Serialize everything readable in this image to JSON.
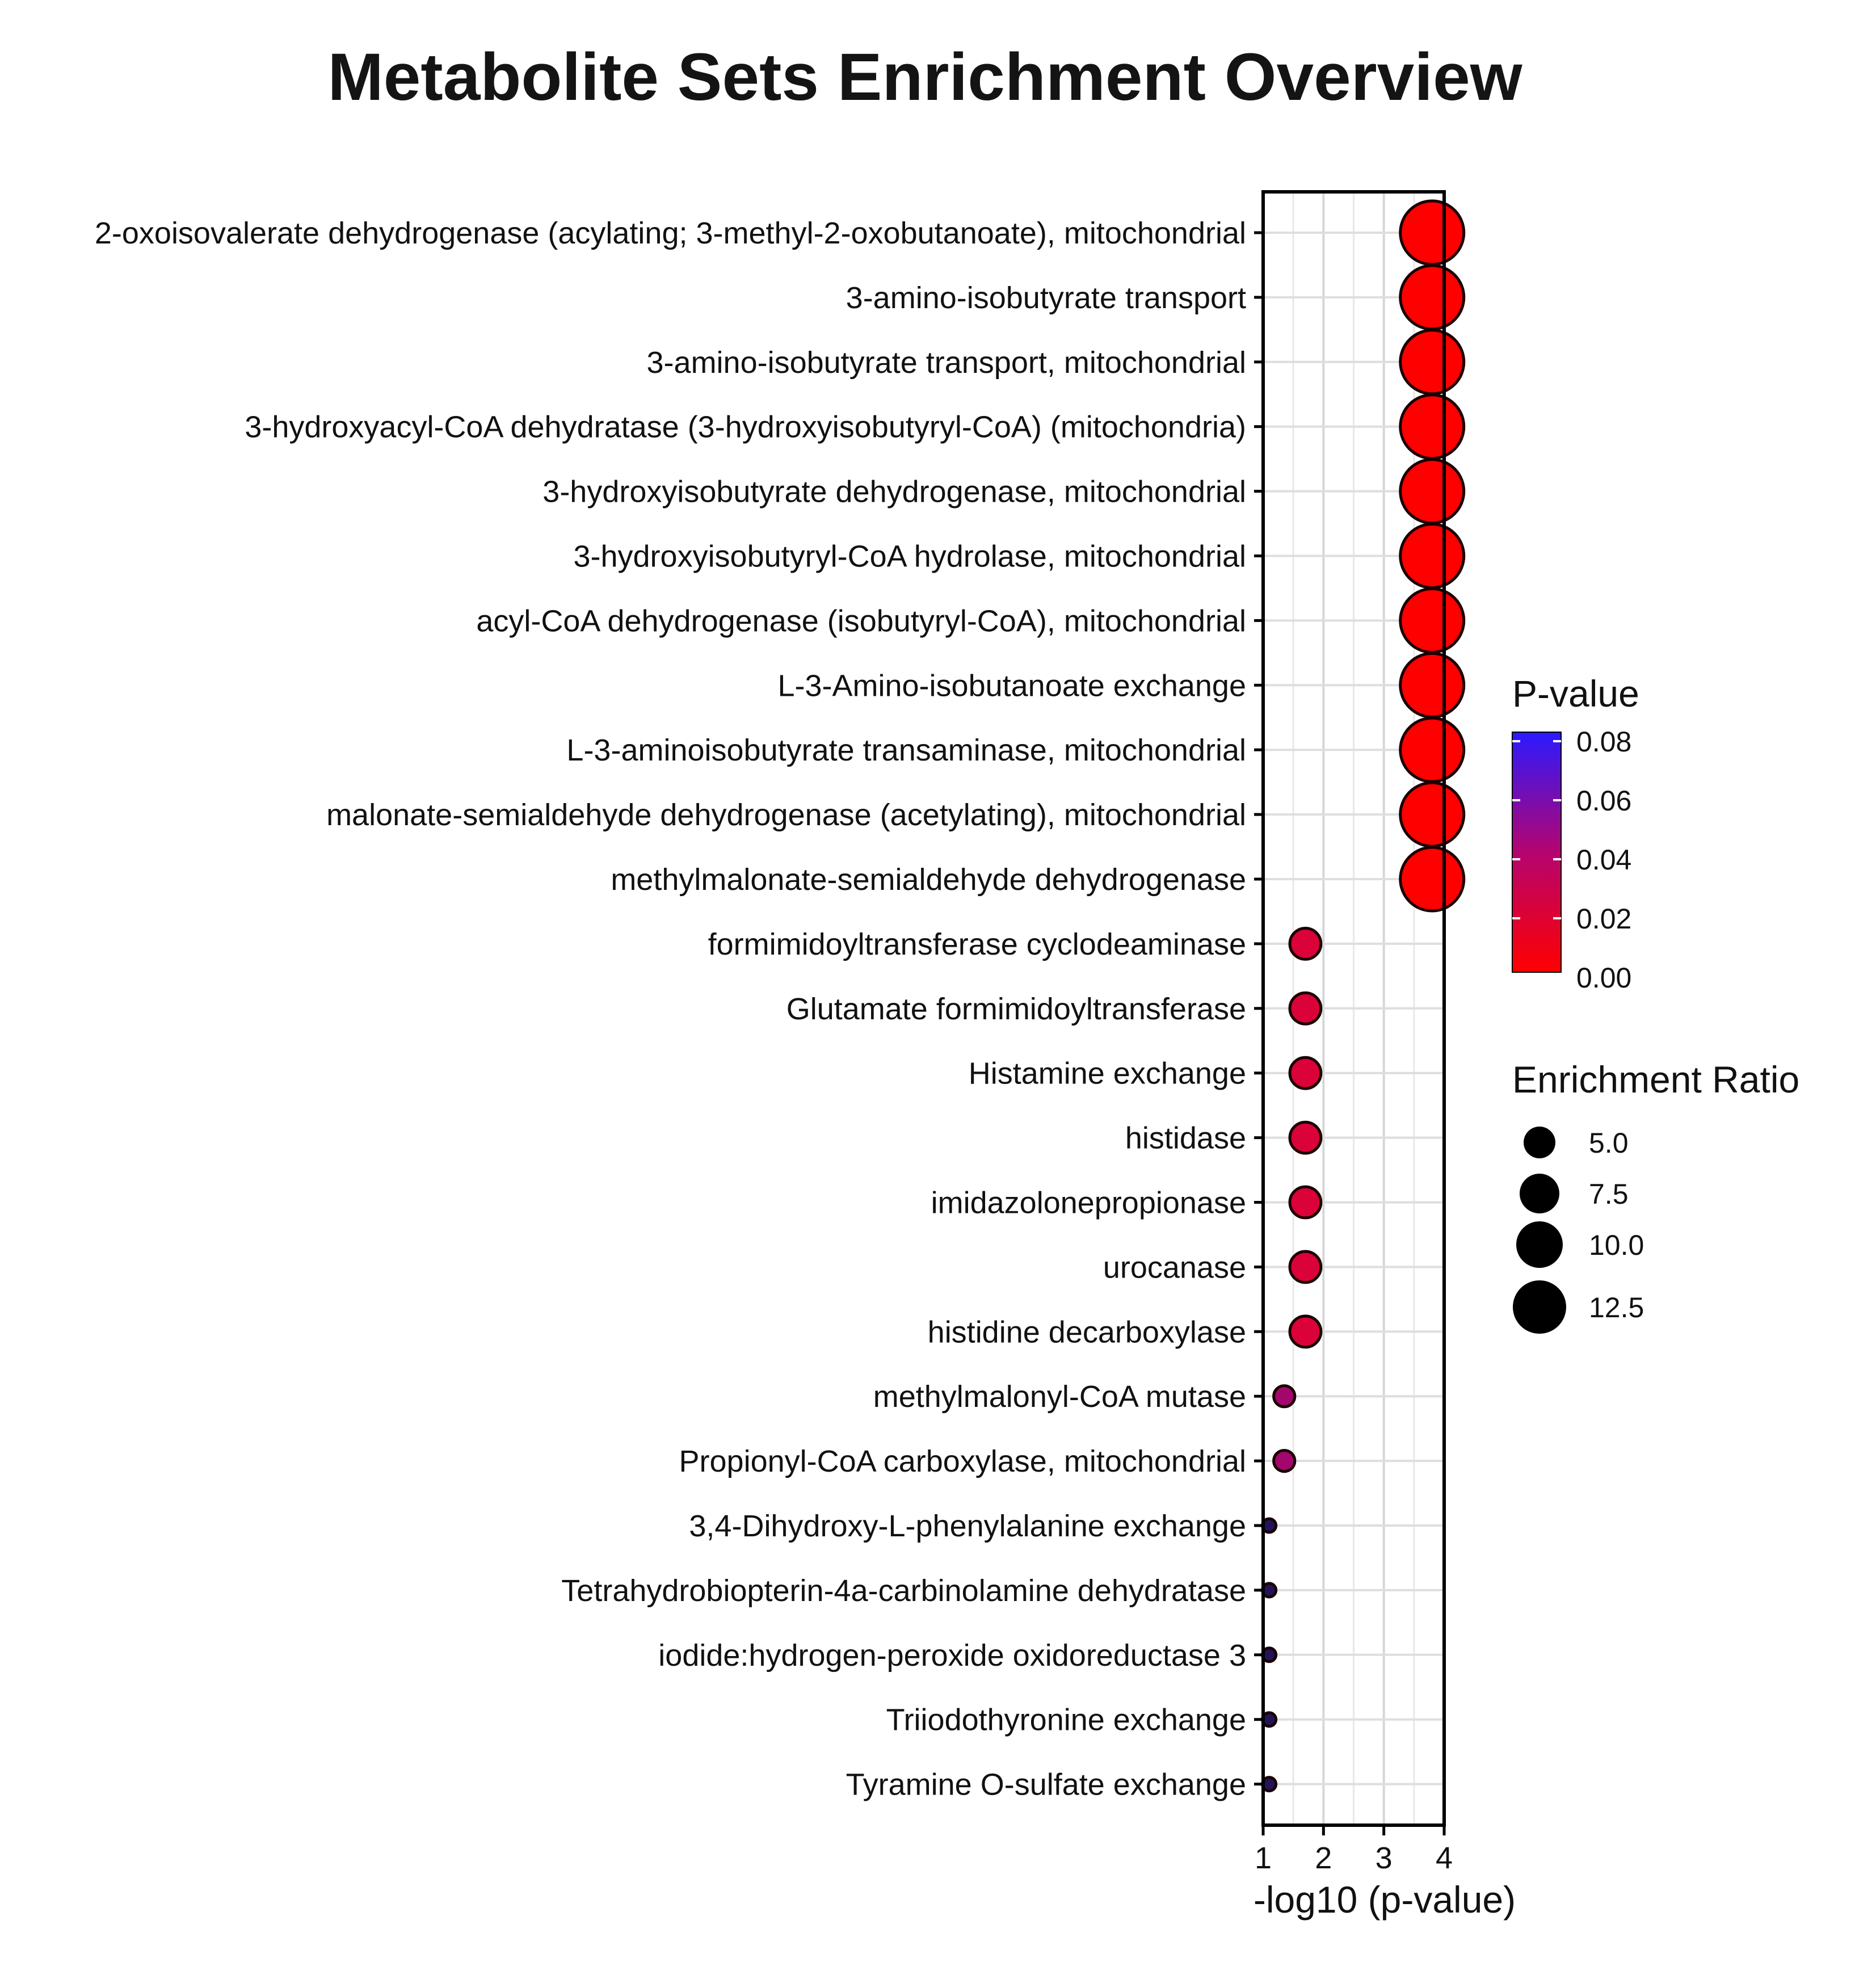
{
  "chart_data": {
    "type": "scatter",
    "title": "Metabolite Sets Enrichment Overview",
    "xlabel": "-log10 (p-value)",
    "ylabel": "",
    "xlim": [
      1,
      4
    ],
    "xticks": [
      1,
      2,
      3,
      4
    ],
    "categories": [
      "2-oxoisovalerate dehydrogenase (acylating; 3-methyl-2-oxobutanoate), mitochondrial",
      "3-amino-isobutyrate transport",
      "3-amino-isobutyrate transport, mitochondrial",
      "3-hydroxyacyl-CoA dehydratase (3-hydroxyisobutyryl-CoA) (mitochondria)",
      "3-hydroxyisobutyrate dehydrogenase, mitochondrial",
      "3-hydroxyisobutyryl-CoA hydrolase, mitochondrial",
      "acyl-CoA dehydrogenase (isobutyryl-CoA), mitochondrial",
      "L-3-Amino-isobutanoate exchange",
      "L-3-aminoisobutyrate transaminase, mitochondrial",
      "malonate-semialdehyde dehydrogenase (acetylating), mitochondrial",
      "methylmalonate-semialdehyde dehydrogenase",
      "formimidoyltransferase cyclodeaminase",
      "Glutamate formimidoyltransferase",
      "Histamine exchange",
      "histidase",
      "imidazolonepropionase",
      "urocanase",
      "histidine decarboxylase",
      "methylmalonyl-CoA mutase",
      "Propionyl-CoA carboxylase, mitochondrial",
      "3,4-Dihydroxy-L-phenylalanine exchange",
      "Tetrahydrobiopterin-4a-carbinolamine dehydratase",
      "iodide:hydrogen-peroxide oxidoreductase 3",
      "Triiodothyronine exchange",
      "Tyramine O-sulfate exchange"
    ],
    "neg_log10_p": [
      3.8,
      3.8,
      3.8,
      3.8,
      3.8,
      3.8,
      3.8,
      3.8,
      3.8,
      3.8,
      3.8,
      1.7,
      1.7,
      1.7,
      1.7,
      1.7,
      1.7,
      1.7,
      1.35,
      1.35,
      1.1,
      1.1,
      1.1,
      1.1,
      1.1
    ],
    "p_value": [
      0.0002,
      0.0002,
      0.0002,
      0.0002,
      0.0002,
      0.0002,
      0.0002,
      0.0002,
      0.0002,
      0.0002,
      0.0002,
      0.02,
      0.02,
      0.02,
      0.02,
      0.02,
      0.02,
      0.02,
      0.045,
      0.045,
      0.08,
      0.08,
      0.08,
      0.08,
      0.08
    ],
    "enrichment_ratio": [
      14,
      14,
      14,
      14,
      14,
      14,
      14,
      14,
      14,
      14,
      14,
      7.5,
      7.5,
      7.5,
      7.5,
      7.5,
      7.5,
      7.5,
      5.5,
      5.5,
      4,
      4,
      4,
      4,
      4
    ],
    "legend_color": {
      "title": "P-value",
      "ticks": [
        "0.08",
        "0.06",
        "0.04",
        "0.02",
        "0.00"
      ],
      "range": [
        0,
        0.08
      ],
      "colors": [
        "#ff0000",
        "#2b1aff"
      ]
    },
    "legend_size": {
      "title": "Enrichment Ratio",
      "labels": [
        "5.0",
        "7.5",
        "10.0",
        "12.5"
      ],
      "values": [
        5.0,
        7.5,
        10.0,
        12.5
      ]
    },
    "grid": true,
    "legend_position": "right"
  }
}
